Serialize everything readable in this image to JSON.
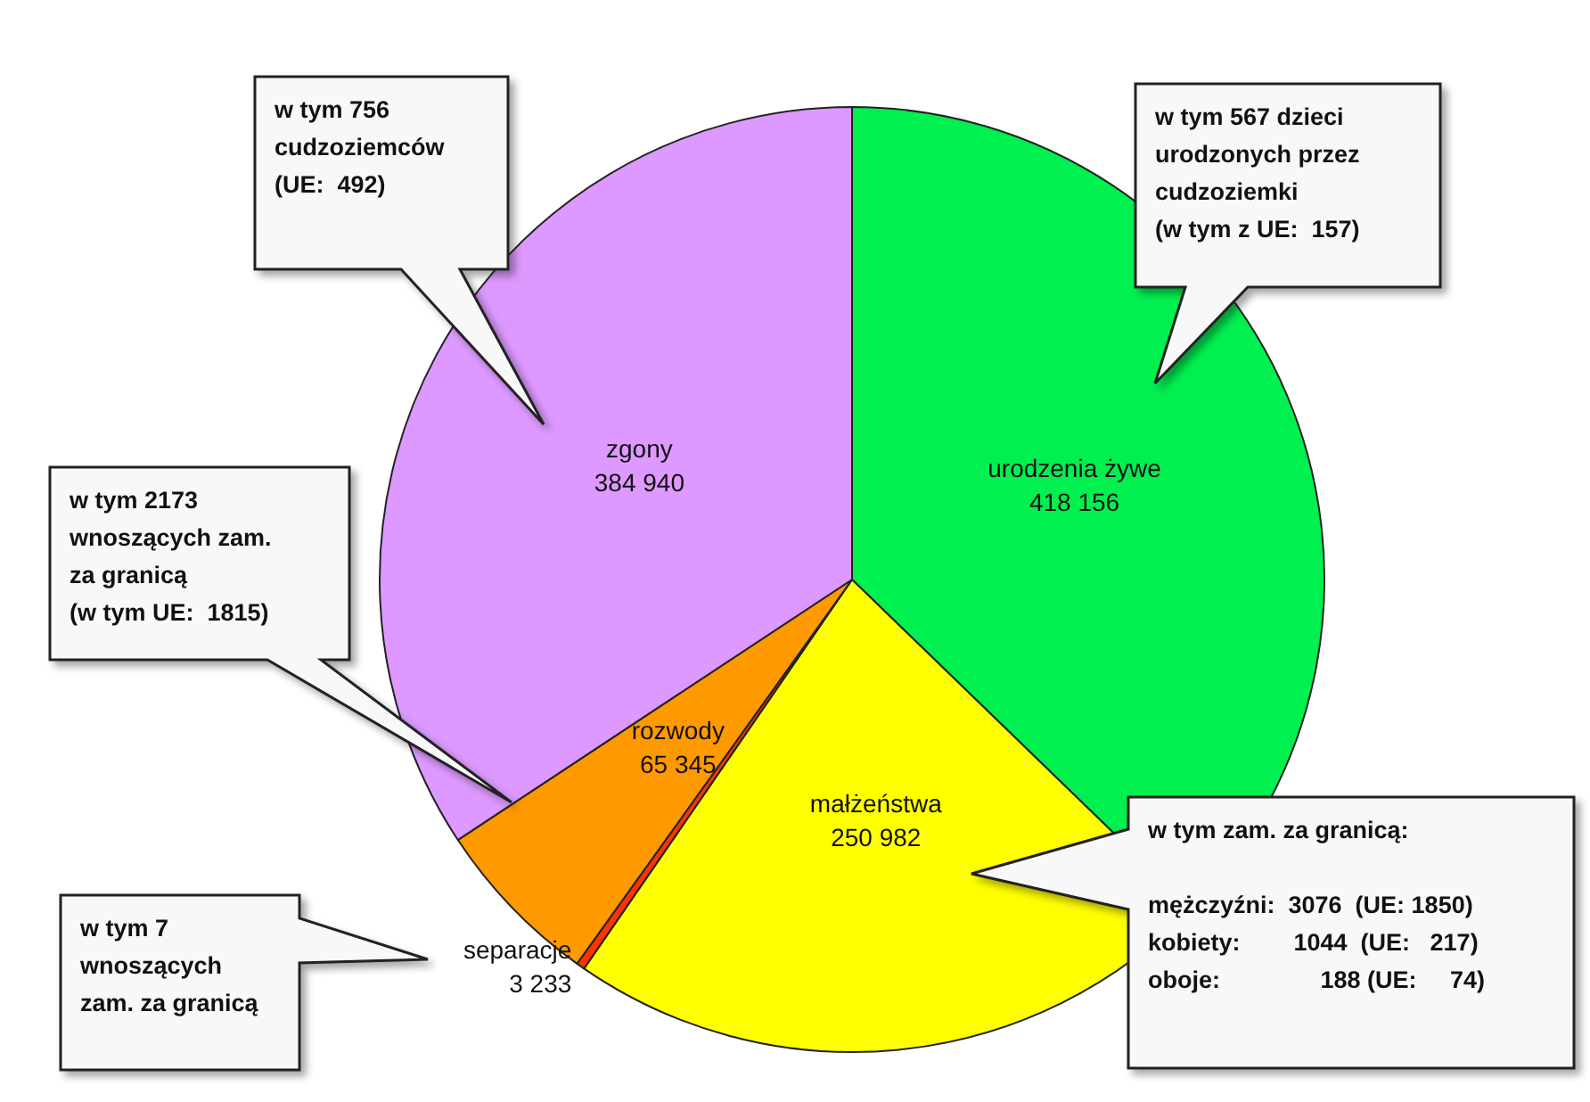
{
  "chart_data": {
    "type": "pie",
    "categories": [
      "urodzenia żywe",
      "małżeństwa",
      "separacje",
      "rozwody",
      "zgony"
    ],
    "values": [
      418156,
      250982,
      3233,
      65345,
      384940
    ],
    "colors": [
      "#00f050",
      "#ffff00",
      "#ff3300",
      "#ff9900",
      "#dd99ff"
    ],
    "data_labels": true,
    "annotations": [
      "w tym 756\ncudzoziemców\n(UE:  492)",
      "w tym 567 dzieci\nurodzonych przez\ncudzoziemki\n(w tym z UE:  157)",
      "w tym 2173\nwnoszących zam.\nza granicą\n(w tym UE:  1815)",
      "w tym 7\nwnoszących\nzam. za granicą",
      "w tym zam. za granicą:\n\nmężczyźni:  3076  (UE: 1850)\nkobiety:        1044  (UE:   217)\noboje:               188 (UE:     74)"
    ]
  }
}
